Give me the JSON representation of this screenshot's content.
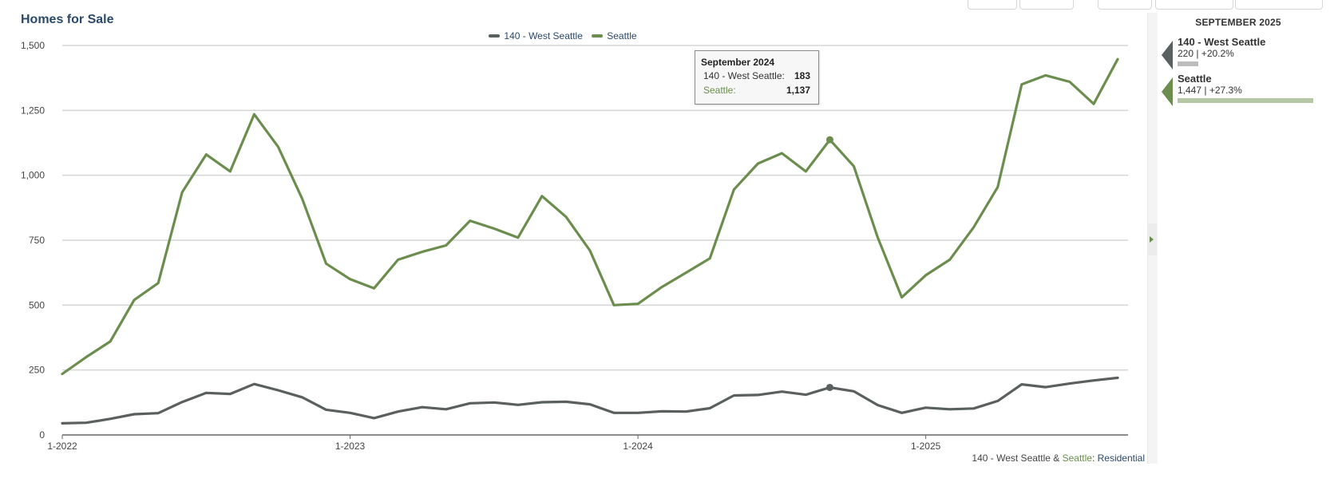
{
  "header": {
    "title": "Homes for Sale"
  },
  "legend": [
    {
      "label": "140 - West Seattle",
      "color": "#5a5f5f"
    },
    {
      "label": "Seattle",
      "color": "#6b8e4e"
    }
  ],
  "tooltip": {
    "title": "September 2024",
    "rows": [
      {
        "label": "140 - West Seattle:",
        "value": "183",
        "color": "#333333"
      },
      {
        "label": "Seattle:",
        "value": "1,137",
        "color": "#6b8e4e"
      }
    ]
  },
  "source": {
    "area": "140 - West Seattle",
    "amp": " & ",
    "city": "Seattle",
    "colon": ": ",
    "type": "Residential"
  },
  "sidebar": {
    "date": "SEPTEMBER 2025",
    "entries": [
      {
        "name": "140 - West Seattle",
        "stat": "220 | +20.2%",
        "color": "#5a5f5f",
        "bar_color": "#bdbdbd",
        "value": 220
      },
      {
        "name": "Seattle",
        "stat": "1,447 | +27.3%",
        "color": "#6b8e4e",
        "bar_color": "#b5c7a5",
        "value": 1447
      }
    ]
  },
  "chart_data": {
    "type": "line",
    "title": "Homes for Sale",
    "ylim": [
      0,
      1500
    ],
    "yticks": [
      0,
      250,
      500,
      750,
      1000,
      1250,
      1500
    ],
    "ytick_labels": [
      "0",
      "250",
      "500",
      "750",
      "1,000",
      "1,250",
      "1,500"
    ],
    "xtick_labels": [
      "1-2022",
      "1-2023",
      "1-2024",
      "1-2025"
    ],
    "xtick_index": [
      0,
      12,
      24,
      36
    ],
    "x": [
      "1-2022",
      "2-2022",
      "3-2022",
      "4-2022",
      "5-2022",
      "6-2022",
      "7-2022",
      "8-2022",
      "9-2022",
      "10-2022",
      "11-2022",
      "12-2022",
      "1-2023",
      "2-2023",
      "3-2023",
      "4-2023",
      "5-2023",
      "6-2023",
      "7-2023",
      "8-2023",
      "9-2023",
      "10-2023",
      "11-2023",
      "12-2023",
      "1-2024",
      "2-2024",
      "3-2024",
      "4-2024",
      "5-2024",
      "6-2024",
      "7-2024",
      "8-2024",
      "9-2024",
      "10-2024",
      "11-2024",
      "12-2024",
      "1-2025",
      "2-2025",
      "3-2025",
      "4-2025",
      "5-2025",
      "6-2025",
      "7-2025",
      "8-2025",
      "9-2025"
    ],
    "grid": true,
    "legend_position": "top-center",
    "highlight_index": 32,
    "series": [
      {
        "name": "140 - West Seattle",
        "color": "#5a5f5f",
        "values": [
          45,
          47,
          62,
          80,
          84,
          127,
          162,
          158,
          196,
          172,
          145,
          97,
          85,
          65,
          90,
          107,
          99,
          122,
          125,
          116,
          126,
          128,
          118,
          85,
          85,
          91,
          90,
          103,
          152,
          154,
          167,
          155,
          183,
          168,
          115,
          85,
          105,
          99,
          102,
          131,
          195,
          184,
          198,
          210,
          220
        ]
      },
      {
        "name": "Seattle",
        "color": "#6b8e4e",
        "values": [
          235,
          300,
          360,
          520,
          585,
          935,
          1080,
          1015,
          1235,
          1110,
          910,
          660,
          600,
          565,
          675,
          705,
          730,
          825,
          795,
          760,
          920,
          840,
          710,
          500,
          505,
          570,
          625,
          680,
          945,
          1045,
          1085,
          1015,
          1137,
          1035,
          760,
          530,
          615,
          675,
          800,
          955,
          1350,
          1385,
          1360,
          1275,
          1447
        ]
      }
    ]
  }
}
